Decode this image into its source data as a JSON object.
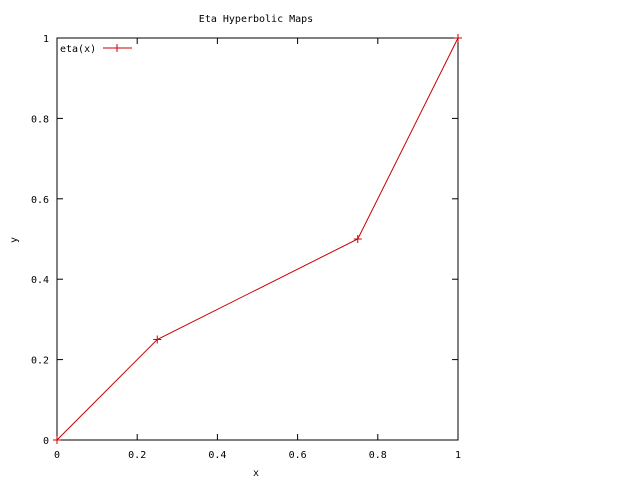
{
  "chart_data": {
    "type": "line",
    "title": "Eta Hyperbolic Maps",
    "xlabel": "x",
    "ylabel": "y",
    "xlim": [
      0,
      1
    ],
    "ylim": [
      0,
      1
    ],
    "x_ticks": [
      "0",
      "0.2",
      "0.4",
      "0.6",
      "0.8",
      "1"
    ],
    "y_ticks": [
      "0",
      "0.2",
      "0.4",
      "0.6",
      "0.8",
      "1"
    ],
    "grid": false,
    "legend_position": "top-left",
    "series": [
      {
        "name": "eta(x)",
        "color": "#cc0000",
        "marker": "plus",
        "x": [
          0,
          0.25,
          0.75,
          1
        ],
        "y": [
          0,
          0.25,
          0.5,
          1
        ]
      }
    ]
  }
}
